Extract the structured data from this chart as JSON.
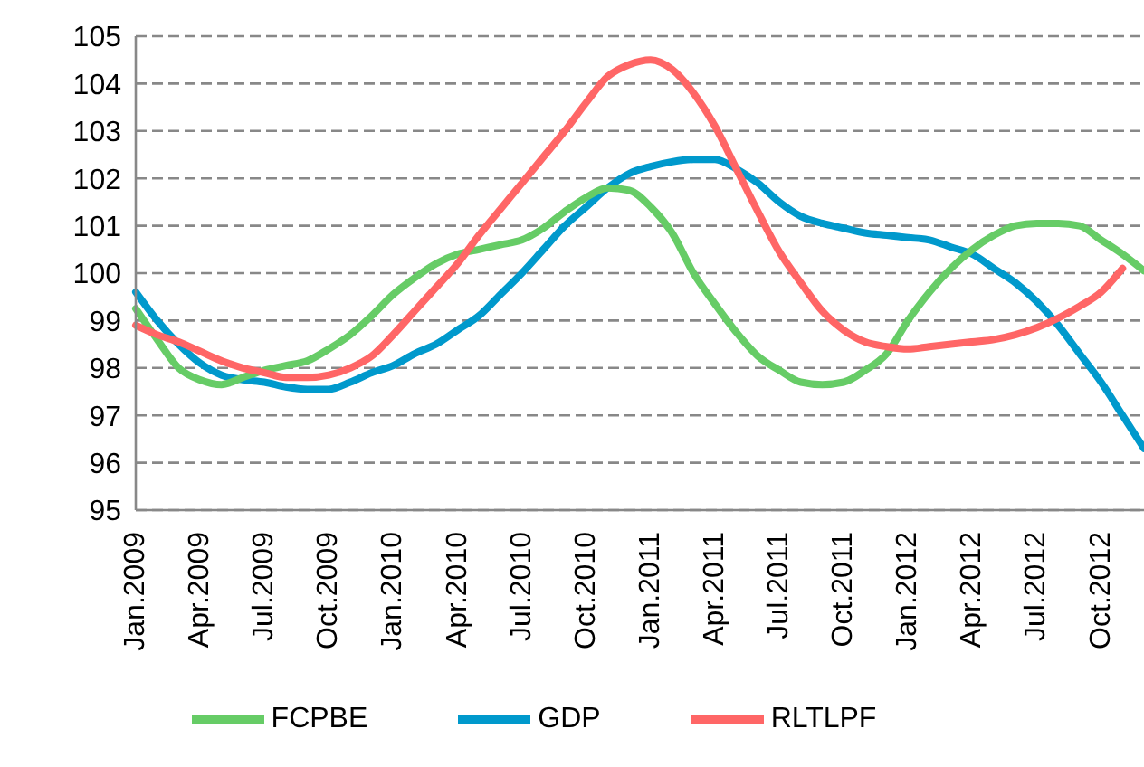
{
  "chart_data": {
    "type": "line",
    "categories": [
      "Jan.2009",
      null,
      null,
      "Apr.2009",
      null,
      null,
      "Jul.2009",
      null,
      null,
      "Oct.2009",
      null,
      null,
      "Jan.2010",
      null,
      null,
      "Apr.2010",
      null,
      null,
      "Jul.2010",
      null,
      null,
      "Oct.2010",
      null,
      null,
      "Jan.2011",
      null,
      null,
      "Apr.2011",
      null,
      null,
      "Jul.2011",
      null,
      null,
      "Oct.2011",
      null,
      null,
      "Jan.2012",
      null,
      null,
      "Apr.2012",
      null,
      null,
      "Jul.2012",
      null,
      null,
      "Oct.2012",
      null,
      null
    ],
    "series": [
      {
        "name": "GDP",
        "color": "#0099cc",
        "values": [
          99.6,
          99.0,
          98.5,
          98.1,
          97.85,
          97.75,
          97.7,
          97.6,
          97.55,
          97.55,
          97.7,
          97.9,
          98.05,
          98.3,
          98.5,
          98.8,
          99.1,
          99.55,
          100.0,
          100.5,
          101.0,
          101.4,
          101.8,
          102.1,
          102.25,
          102.35,
          102.4,
          102.4,
          102.2,
          101.9,
          101.5,
          101.2,
          101.05,
          100.95,
          100.85,
          100.8,
          100.75,
          100.7,
          100.55,
          100.4,
          100.1,
          99.8,
          99.4,
          98.9,
          98.3,
          97.7,
          97.0,
          96.3
        ]
      },
      {
        "name": "FCPBE",
        "color": "#66cc66",
        "values": [
          99.25,
          98.6,
          98.0,
          97.75,
          97.65,
          97.8,
          97.95,
          98.05,
          98.15,
          98.4,
          98.7,
          99.1,
          99.55,
          99.9,
          100.2,
          100.4,
          100.5,
          100.6,
          100.7,
          100.95,
          101.3,
          101.6,
          101.8,
          101.75,
          101.4,
          100.85,
          100.0,
          99.35,
          98.75,
          98.25,
          97.95,
          97.7,
          97.65,
          97.7,
          97.95,
          98.3,
          99.0,
          99.6,
          100.1,
          100.5,
          100.8,
          101.0,
          101.05,
          101.05,
          101.0,
          100.7,
          100.4,
          100.05
        ]
      },
      {
        "name": "RLTLPF",
        "color": "#ff6666",
        "values": [
          98.9,
          98.7,
          98.55,
          98.35,
          98.15,
          98.0,
          97.9,
          97.8,
          97.8,
          97.85,
          98.0,
          98.25,
          98.7,
          99.2,
          99.7,
          100.2,
          100.8,
          101.35,
          101.9,
          102.45,
          103.0,
          103.6,
          104.15,
          104.4,
          104.5,
          104.3,
          103.8,
          103.1,
          102.2,
          101.3,
          100.45,
          99.8,
          99.2,
          98.8,
          98.55,
          98.45,
          98.4,
          98.45,
          98.5,
          98.55,
          98.6,
          98.7,
          98.85,
          99.05,
          99.3,
          99.6,
          100.1,
          null
        ]
      }
    ],
    "ylim": [
      95,
      105
    ],
    "yticks": [
      95,
      96,
      97,
      98,
      99,
      100,
      101,
      102,
      103,
      104,
      105
    ],
    "grid": "y",
    "legend": "bottom",
    "marker": "none",
    "line_style": "solid"
  }
}
